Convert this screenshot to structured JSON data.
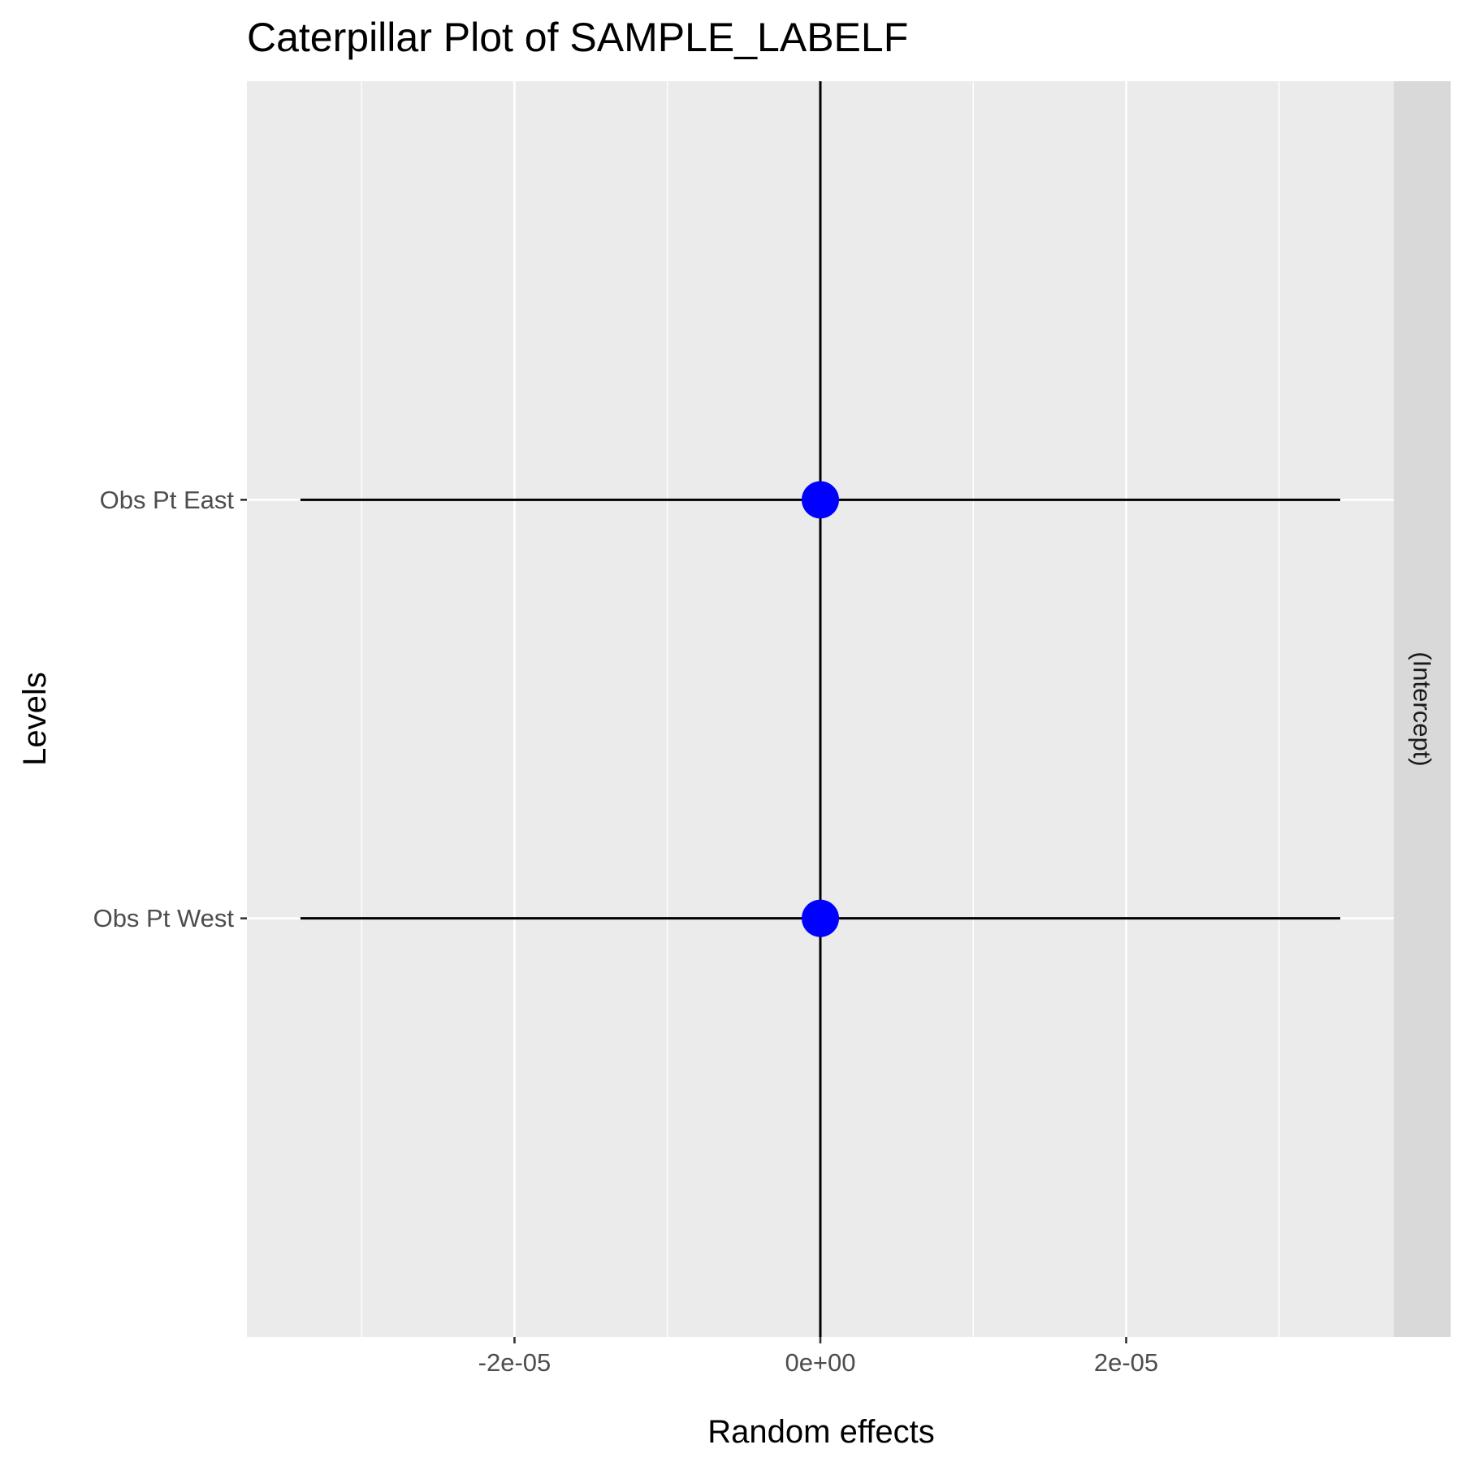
{
  "chart_data": {
    "type": "scatter",
    "title": "Caterpillar Plot of  SAMPLE_LABELF",
    "xlabel": "Random effects",
    "ylabel": "Levels",
    "facet_label": "(Intercept)",
    "xlim": [
      -3.75e-05,
      3.75e-05
    ],
    "x_ticks": [
      {
        "value": -2e-05,
        "label": "-2e-05"
      },
      {
        "value": 0,
        "label": "0e+00"
      },
      {
        "value": 2e-05,
        "label": "2e-05"
      }
    ],
    "x_minor_breaks": [
      -3e-05,
      -1e-05,
      1e-05,
      3e-05
    ],
    "categories": [
      "Obs Pt West",
      "Obs Pt East"
    ],
    "points": [
      {
        "level": "Obs Pt East",
        "value": 0,
        "lower": -3.4e-05,
        "upper": 3.4e-05
      },
      {
        "level": "Obs Pt West",
        "value": 0,
        "lower": -3.4e-05,
        "upper": 3.4e-05
      }
    ],
    "reference_line": 0,
    "point_color": "#0000ff",
    "panel_background": "#ebebeb",
    "strip_background": "#d9d9d9",
    "grid": true,
    "legend": "none"
  }
}
